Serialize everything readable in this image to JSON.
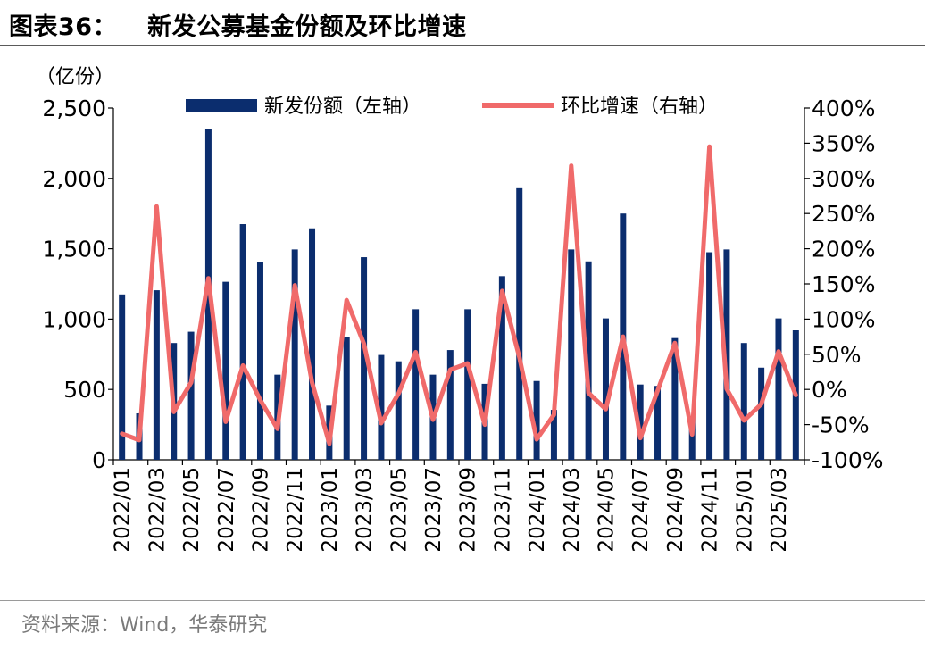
{
  "header": {
    "fig_num": "图表36：",
    "title": "新发公募基金份额及环比增速"
  },
  "unit_label": "（亿份）",
  "source": "资料来源：Wind，华泰研究",
  "chart_data": {
    "type": "bar+line",
    "categories": [
      "2022/01",
      "2022/02",
      "2022/03",
      "2022/04",
      "2022/05",
      "2022/06",
      "2022/07",
      "2022/08",
      "2022/09",
      "2022/10",
      "2022/11",
      "2022/12",
      "2023/01",
      "2023/02",
      "2023/03",
      "2023/04",
      "2023/05",
      "2023/06",
      "2023/07",
      "2023/08",
      "2023/09",
      "2023/10",
      "2023/11",
      "2023/12",
      "2024/01",
      "2024/02",
      "2024/03",
      "2024/04",
      "2024/05",
      "2024/06",
      "2024/07",
      "2024/08",
      "2024/09",
      "2024/10",
      "2024/11",
      "2024/12",
      "2025/01",
      "2025/02",
      "2025/03",
      "2025/04"
    ],
    "x_tick_labels": [
      "2022/01",
      "2022/03",
      "2022/05",
      "2022/07",
      "2022/09",
      "2022/11",
      "2023/01",
      "2023/03",
      "2023/05",
      "2023/07",
      "2023/09",
      "2023/11",
      "2024/01",
      "2024/03",
      "2024/05",
      "2024/07",
      "2024/09",
      "2024/11",
      "2025/01",
      "2025/03"
    ],
    "series": [
      {
        "name": "新发份额（左轴）",
        "type": "bar",
        "axis": "left",
        "color": "#0b2d6e",
        "values": [
          1175,
          330,
          1205,
          830,
          910,
          2350,
          1265,
          1675,
          1405,
          605,
          1495,
          1645,
          385,
          875,
          1440,
          745,
          700,
          1070,
          605,
          780,
          1070,
          540,
          1305,
          1930,
          560,
          355,
          1495,
          1410,
          1005,
          1750,
          535,
          525,
          865,
          310,
          1475,
          1495,
          830,
          655,
          1005,
          920
        ]
      },
      {
        "name": "环比增速（右轴）",
        "type": "line",
        "axis": "right",
        "color": "#f06a6a",
        "values": [
          -63,
          -72,
          260,
          -32,
          10,
          158,
          -46,
          34,
          -15,
          -56,
          148,
          10,
          -77,
          127,
          65,
          -48,
          -6,
          53,
          -43,
          28,
          37,
          -50,
          140,
          46,
          -71,
          -36,
          318,
          -5,
          -28,
          75,
          -69,
          -2,
          66,
          -64,
          345,
          1,
          -44,
          -21,
          54,
          -8
        ]
      }
    ],
    "y_left": {
      "ticks": [
        "0",
        "500",
        "1,000",
        "1,500",
        "2,000",
        "2,500"
      ],
      "range": [
        0,
        2500
      ]
    },
    "y_right": {
      "ticks": [
        "-100%",
        "-50%",
        "0%",
        "50%",
        "100%",
        "150%",
        "200%",
        "250%",
        "300%",
        "350%",
        "400%"
      ],
      "range": [
        -100,
        400
      ]
    },
    "legend": {
      "position": "top-center",
      "bar_label": "新发份额（左轴）",
      "line_label": "环比增速（右轴）"
    },
    "grid": false
  }
}
